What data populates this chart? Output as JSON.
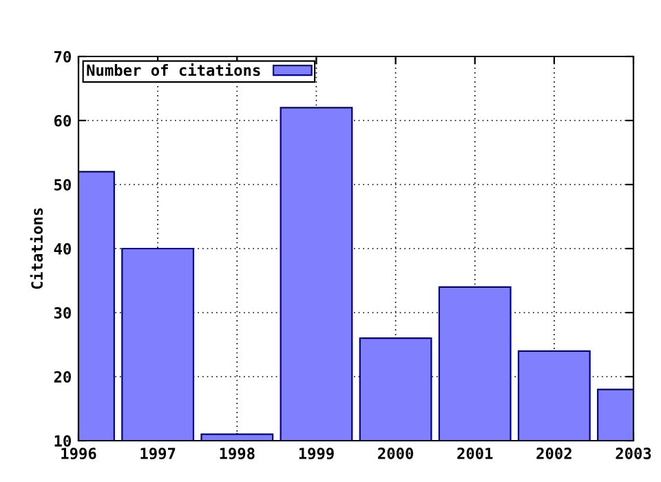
{
  "chart_data": {
    "type": "bar",
    "ylabel": "Citations",
    "x": [
      1996,
      1997,
      1998,
      1999,
      2000,
      2001,
      2002,
      2003
    ],
    "series": [
      {
        "name": "Number of citations",
        "color": "#8080ff",
        "values": [
          52,
          40,
          11,
          62,
          26,
          34,
          24,
          18
        ]
      }
    ],
    "xlim": [
      1996,
      2003
    ],
    "xticks": [
      1996,
      1997,
      1998,
      1999,
      2000,
      2001,
      2002,
      2003
    ],
    "ylim": [
      10,
      70
    ],
    "yticks": [
      10,
      20,
      30,
      40,
      50,
      60,
      70
    ],
    "grid": true,
    "legend": "top left"
  }
}
